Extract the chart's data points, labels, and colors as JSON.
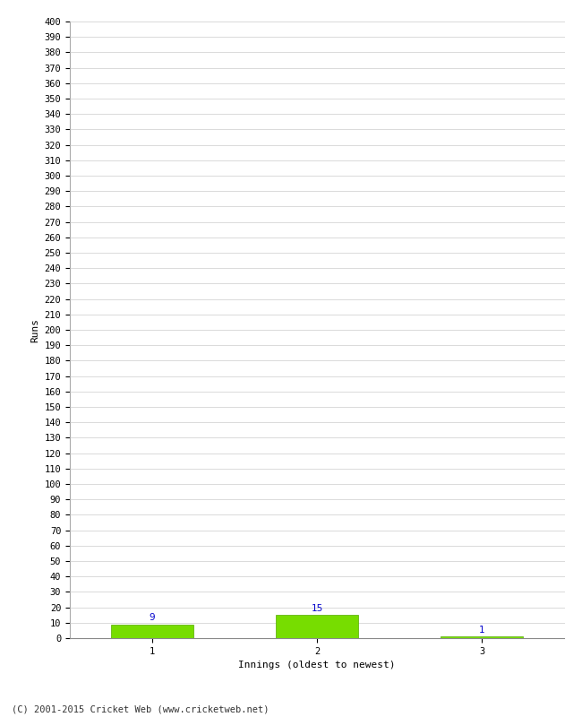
{
  "categories": [
    1,
    2,
    3
  ],
  "values": [
    9,
    15,
    1
  ],
  "bar_color": "#77dd00",
  "bar_edge_color": "#55aa00",
  "value_color": "#0000cc",
  "xlabel": "Innings (oldest to newest)",
  "ylabel": "Runs",
  "ylim": [
    0,
    400
  ],
  "ytick_step": 10,
  "background_color": "#ffffff",
  "grid_color": "#cccccc",
  "footer_text": "(C) 2001-2015 Cricket Web (www.cricketweb.net)",
  "footer_color": "#333333",
  "value_fontsize": 7.5,
  "axis_label_fontsize": 8,
  "tick_fontsize": 7.5,
  "footer_fontsize": 7.5,
  "xlim": [
    0.5,
    3.5
  ],
  "bar_width": 0.5
}
